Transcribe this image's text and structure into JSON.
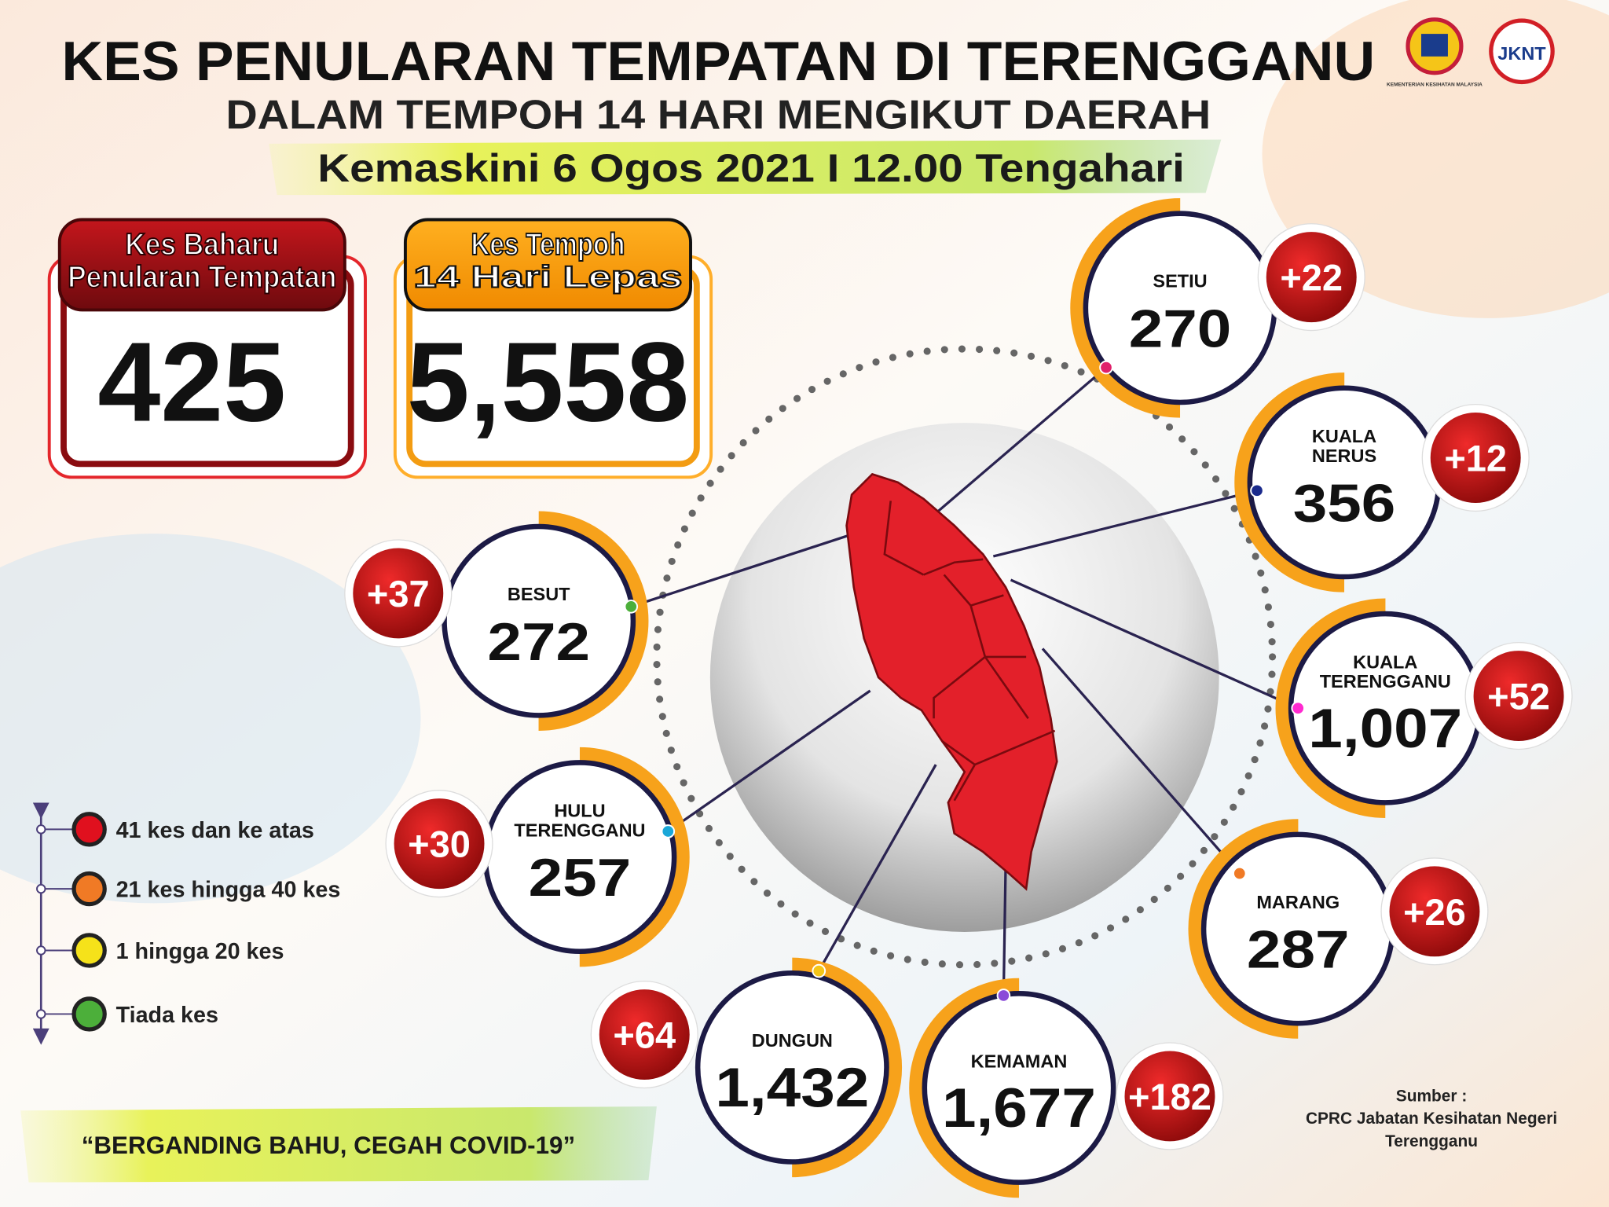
{
  "header": {
    "title": "KES PENULARAN TEMPATAN DI TERENGGANU",
    "subtitle": "DALAM TEMPOH 14 HARI MENGIKUT DAERAH",
    "updated": "Kemaskini 6 Ogos 2021 I 12.00 Tengahari",
    "logo_text": "KEMENTERIAN KESIHATAN MALAYSIA",
    "logo2_text": "JKNT"
  },
  "summary": [
    {
      "label": [
        "Kes Baharu",
        "Penularan Tempatan"
      ],
      "value": "425"
    },
    {
      "label": [
        "Kes Tempoh",
        "14 Hari Lepas"
      ],
      "value": "5,558"
    }
  ],
  "districts": [
    {
      "name": [
        "SETIU"
      ],
      "total": "270",
      "new": "+22"
    },
    {
      "name": [
        "KUALA",
        "NERUS"
      ],
      "total": "356",
      "new": "+12"
    },
    {
      "name": [
        "BESUT"
      ],
      "total": "272",
      "new": "+37"
    },
    {
      "name": [
        "KUALA",
        "TERENGGANU"
      ],
      "total": "1,007",
      "new": "+52"
    },
    {
      "name": [
        "HULU",
        "TERENGGANU"
      ],
      "total": "257",
      "new": "+30"
    },
    {
      "name": [
        "MARANG"
      ],
      "total": "287",
      "new": "+26"
    },
    {
      "name": [
        "DUNGUN"
      ],
      "total": "1,432",
      "new": "+64"
    },
    {
      "name": [
        "KEMAMAN"
      ],
      "total": "1,677",
      "new": "+182"
    }
  ],
  "legend": [
    {
      "label": "41 kes dan ke atas",
      "color": "#e0101e"
    },
    {
      "label": "21 kes hingga 40 kes",
      "color": "#f07a25"
    },
    {
      "label": "1 hingga 20 kes",
      "color": "#f5e21a"
    },
    {
      "label": "Tiada kes",
      "color": "#4caf3a"
    }
  ],
  "slogan": "“BERGANDING BAHU, CEGAH COVID-19”",
  "source": [
    "Sumber :",
    "CPRC Jabatan Kesihatan Negeri",
    "Terengganu"
  ]
}
